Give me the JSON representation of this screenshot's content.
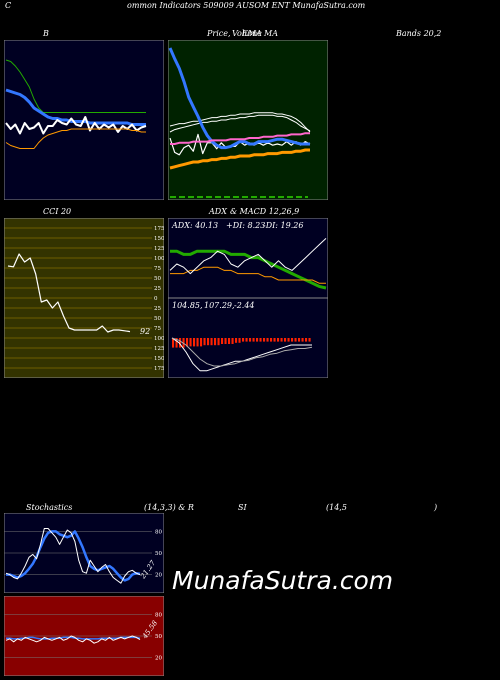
{
  "header": {
    "c": "C",
    "text": "ommon  Indicators 509009 AUSOM ENT MunafaSutra.com"
  },
  "labels": {
    "b": "B",
    "price": "Price,",
    "volume_overlap": "Volume",
    "ema_label": "EMA",
    "ma": "MA",
    "bands": "Bands 20,2",
    "cci": "CCI 20",
    "adx": "ADX",
    "amp": "& MACD 12,26,9",
    "stoch": "Stochastics",
    "stoch_params": "(14,3,3) & R",
    "si": "SI",
    "rsi_params": "(14,5",
    "rsi_close": ")"
  },
  "colors": {
    "panel_dark": "#000022",
    "panel_green": "#002200",
    "panel_olive": "#333300",
    "panel_red": "#880000",
    "blue": "#3377ff",
    "white": "#ffffff",
    "green": "#22aa00",
    "orange": "#ff9900",
    "pink": "#ff66cc",
    "grid_gold": "#aa8800"
  },
  "watermark": "MunafaSutra.com",
  "chart_data": [
    {
      "type": "line",
      "name": "bollinger-bands",
      "x": [
        0,
        1,
        2,
        3,
        4,
        5,
        6,
        7,
        8,
        9,
        10,
        11,
        12,
        13,
        14,
        15,
        16,
        17,
        18,
        19,
        20,
        21,
        22,
        23,
        24,
        25,
        26,
        27,
        28,
        29,
        30
      ],
      "series": [
        {
          "color": "#22aa00",
          "values": [
            90,
            89,
            86,
            82,
            77,
            72,
            64,
            58,
            55,
            55,
            55,
            55,
            55,
            55,
            55,
            55,
            55,
            55,
            55,
            55,
            55,
            55,
            55,
            55,
            55,
            55,
            55,
            55,
            55,
            55,
            55
          ]
        },
        {
          "color": "#3377ff",
          "values": [
            70,
            69,
            68,
            67,
            65,
            62,
            58,
            56,
            54,
            52,
            51,
            51,
            50,
            50,
            49,
            49,
            49,
            49,
            48,
            48,
            48,
            48,
            48,
            48,
            48,
            48,
            48,
            47,
            47,
            47,
            47
          ]
        },
        {
          "color": "#ffffff",
          "values": [
            48,
            44,
            47,
            41,
            48,
            44,
            45,
            48,
            41,
            46,
            46,
            50,
            48,
            47,
            51,
            47,
            46,
            52,
            43,
            48,
            44,
            47,
            45,
            47,
            42,
            46,
            44,
            47,
            43,
            45,
            46
          ]
        },
        {
          "color": "#ff9900",
          "values": [
            35,
            33,
            32,
            31,
            31,
            31,
            31,
            35,
            38,
            40,
            41,
            42,
            43,
            43,
            44,
            44,
            44,
            44,
            44,
            44,
            44,
            44,
            44,
            44,
            44,
            44,
            44,
            43,
            43,
            42,
            42
          ]
        }
      ]
    },
    {
      "type": "line",
      "name": "price-volume-ma",
      "x": [
        0,
        1,
        2,
        3,
        4,
        5,
        6,
        7,
        8,
        9,
        10,
        11,
        12,
        13,
        14,
        15,
        16,
        17,
        18,
        19,
        20,
        21,
        22,
        23,
        24,
        25,
        26,
        27,
        28,
        29,
        30
      ],
      "series": [
        {
          "color": "#ffffff",
          "values": [
            60,
            61,
            62,
            62,
            63,
            64,
            64,
            65,
            66,
            67,
            67,
            68,
            68,
            69,
            69,
            70,
            70,
            70,
            71,
            71,
            71,
            71,
            71,
            70,
            70,
            69,
            68,
            66,
            63,
            59,
            55
          ]
        },
        {
          "color": "#ffffff",
          "values": [
            55,
            57,
            58,
            59,
            60,
            61,
            62,
            63,
            63,
            64,
            64,
            65,
            65,
            66,
            66,
            67,
            67,
            68,
            68,
            69,
            69,
            69,
            69,
            68,
            68,
            67,
            65,
            63,
            60,
            58,
            56
          ]
        },
        {
          "color": "#ffffff",
          "values": [
            50,
            38,
            36,
            42,
            44,
            39,
            53,
            37,
            46,
            46,
            41,
            46,
            42,
            43,
            43,
            47,
            44,
            46,
            44,
            46,
            44,
            46,
            44,
            45,
            44,
            47,
            44,
            47,
            44,
            47,
            45
          ]
        },
        {
          "color": "#3377ff",
          "values": [
            125,
            116,
            108,
            97,
            84,
            76,
            68,
            59,
            52,
            47,
            44,
            42,
            42,
            43,
            45,
            47,
            47,
            45,
            45,
            47,
            47,
            47,
            48,
            49,
            49,
            48,
            47,
            46,
            45,
            45,
            45
          ]
        },
        {
          "color": "#ff66cc",
          "values": [
            45,
            45,
            46,
            46,
            46,
            47,
            47,
            47,
            47,
            48,
            48,
            48,
            48,
            49,
            49,
            49,
            49,
            50,
            50,
            50,
            51,
            51,
            51,
            52,
            52,
            52,
            53,
            53,
            53,
            54,
            54
          ]
        },
        {
          "color": "#ff9900",
          "values": [
            25,
            26,
            27,
            28,
            29,
            30,
            30,
            31,
            31,
            32,
            32,
            33,
            33,
            34,
            34,
            35,
            35,
            35,
            36,
            36,
            36,
            37,
            37,
            37,
            38,
            38,
            38,
            39,
            39,
            40,
            40
          ]
        }
      ]
    },
    {
      "type": "line",
      "name": "cci-20",
      "x": [
        0,
        1,
        2,
        3,
        4,
        5,
        6,
        7,
        8,
        9,
        10,
        11,
        12,
        13,
        14,
        15,
        16,
        17,
        18,
        19,
        20,
        21,
        22
      ],
      "series": [
        {
          "color": "#ffffff",
          "values": [
            80,
            78,
            110,
            90,
            100,
            60,
            -10,
            -5,
            -25,
            -10,
            -45,
            -75,
            -80,
            -80,
            -80,
            -80,
            -80,
            -70,
            -85,
            -80,
            -80,
            -82,
            -84
          ]
        }
      ],
      "y_ticks": [
        175,
        150,
        125,
        100,
        75,
        50,
        25,
        0,
        -25,
        -50,
        -75,
        -100,
        -125,
        -150,
        -175
      ],
      "y_tick_labels": [
        "175",
        "150",
        "125",
        "100",
        "75",
        "50",
        "25",
        "0",
        "25",
        "50",
        "75",
        "100",
        "125",
        "150",
        "175"
      ],
      "value_label": "92",
      "ylim": [
        -175,
        175
      ]
    },
    {
      "type": "line",
      "name": "adx",
      "x": [
        0,
        1,
        2,
        3,
        4,
        5,
        6,
        7,
        8,
        9,
        10,
        11,
        12,
        13,
        14,
        15,
        16,
        17,
        18,
        19,
        20,
        21,
        22,
        23
      ],
      "texts": {
        "adx": "ADX: 40.13",
        "pdi": "+DI: 8.23",
        "mdi": "-DI: 19.26"
      },
      "series": [
        {
          "color": "#22aa00",
          "values": [
            28,
            28,
            26,
            26,
            28,
            28,
            28,
            28,
            28,
            26,
            26,
            26,
            24,
            24,
            22,
            20,
            18,
            16,
            14,
            12,
            10,
            8,
            6,
            5
          ]
        },
        {
          "color": "#ff9900",
          "values": [
            14,
            14,
            14,
            16,
            16,
            18,
            18,
            18,
            16,
            16,
            14,
            14,
            14,
            14,
            12,
            12,
            10,
            10,
            10,
            10,
            10,
            10,
            8,
            8
          ]
        },
        {
          "color": "#ffffff",
          "values": [
            16,
            20,
            18,
            14,
            18,
            22,
            24,
            28,
            26,
            20,
            18,
            22,
            24,
            26,
            22,
            18,
            22,
            18,
            16,
            20,
            24,
            28,
            32,
            36
          ]
        }
      ]
    },
    {
      "type": "line",
      "name": "macd",
      "texts": {
        "macd": "104.85,",
        "signal": "107.29,",
        "hist": "-2.44"
      },
      "x": [
        0,
        1,
        2,
        3,
        4,
        5,
        6,
        7,
        8,
        9,
        10,
        11,
        12,
        13,
        14,
        15,
        16,
        17,
        18,
        19,
        20
      ],
      "series": [
        {
          "color": "#ffffff",
          "values": [
            0,
            -4,
            -12,
            -22,
            -28,
            -28,
            -26,
            -24,
            -22,
            -20,
            -20,
            -18,
            -16,
            -14,
            -12,
            -10,
            -8,
            -6,
            -6,
            -6,
            -6
          ]
        },
        {
          "color": "#aaaaaa",
          "values": [
            0,
            -2,
            -6,
            -12,
            -18,
            -22,
            -24,
            -24,
            -23,
            -22,
            -20,
            -19,
            -17,
            -16,
            -14,
            -13,
            -11,
            -10,
            -9,
            -9,
            -8
          ]
        }
      ],
      "histogram": {
        "color": "#ff2200",
        "values": [
          -8,
          -8,
          -8,
          -8,
          -7,
          -7,
          -7,
          -7,
          -7,
          -6,
          -6,
          -6,
          -6,
          -6,
          -5,
          -5,
          -5,
          -5,
          -4,
          -4,
          -3,
          -3,
          -3,
          -3,
          -3,
          -3,
          -3,
          -3,
          -3,
          -3,
          -3,
          -3,
          -3,
          -3,
          -3,
          -3,
          -3,
          -3,
          -3,
          -3
        ]
      }
    },
    {
      "type": "line",
      "name": "stochastics",
      "x": [
        0,
        1,
        2,
        3,
        4,
        5,
        6,
        7,
        8,
        9,
        10,
        11,
        12,
        13,
        14,
        15,
        16,
        17,
        18,
        19,
        20,
        21,
        22,
        23,
        24,
        25,
        26,
        27,
        28,
        29,
        30,
        31,
        32,
        33,
        34,
        35
      ],
      "y_ticks": [
        80,
        50,
        20
      ],
      "value_label": "21.27",
      "series": [
        {
          "color": "#3377ff",
          "values": [
            20,
            20,
            18,
            16,
            18,
            22,
            28,
            35,
            45,
            58,
            70,
            78,
            80,
            80,
            76,
            74,
            72,
            74,
            80,
            70,
            58,
            44,
            32,
            28,
            26,
            28,
            30,
            32,
            28,
            22,
            16,
            12,
            14,
            20,
            22,
            21
          ]
        },
        {
          "color": "#ffffff",
          "values": [
            22,
            20,
            16,
            14,
            22,
            32,
            44,
            48,
            42,
            62,
            84,
            84,
            78,
            72,
            62,
            72,
            82,
            78,
            66,
            40,
            24,
            22,
            40,
            32,
            24,
            30,
            34,
            24,
            16,
            12,
            8,
            18,
            24,
            26,
            22,
            20
          ]
        }
      ]
    },
    {
      "type": "line",
      "name": "rsi",
      "x": [
        0,
        1,
        2,
        3,
        4,
        5,
        6,
        7,
        8,
        9,
        10,
        11,
        12,
        13,
        14,
        15,
        16,
        17,
        18,
        19,
        20,
        21,
        22,
        23,
        24,
        25,
        26,
        27,
        28,
        29,
        30,
        31,
        32,
        33,
        34,
        35
      ],
      "y_ticks": [
        80,
        50,
        20
      ],
      "value_label": "45.58",
      "series": [
        {
          "color": "#3377ff",
          "values": [
            47,
            47,
            46,
            46,
            47,
            47,
            48,
            48,
            47,
            46,
            46,
            46,
            47,
            47,
            47,
            48,
            48,
            48,
            47,
            47,
            46,
            46,
            46,
            46,
            46,
            47,
            47,
            47,
            47,
            47,
            48,
            48,
            48,
            48,
            48,
            47
          ]
        },
        {
          "color": "#ffffff",
          "values": [
            44,
            46,
            42,
            46,
            44,
            48,
            46,
            44,
            42,
            44,
            48,
            46,
            44,
            46,
            48,
            44,
            46,
            50,
            48,
            44,
            42,
            46,
            44,
            40,
            42,
            46,
            44,
            48,
            44,
            46,
            48,
            46,
            48,
            50,
            48,
            45
          ]
        }
      ]
    }
  ]
}
